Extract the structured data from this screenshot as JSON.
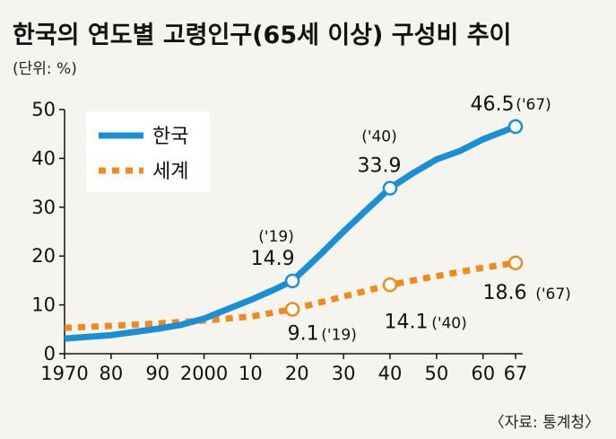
{
  "title": "한국의 연도별 고령인구(65세 이상) 구성비 추이",
  "unit": "(단위: %)",
  "source": "〈자료: 통계청〉",
  "colors": {
    "korea": "#1a8fd6",
    "world": "#f08a1c",
    "background": "#f6f4ef"
  },
  "chart_data": {
    "type": "line",
    "title": "한국의 연도별 고령인구(65세 이상) 구성비 추이",
    "ylim": [
      0,
      50
    ],
    "xlim": [
      1970,
      2067
    ],
    "yticks": [
      0,
      10,
      20,
      30,
      40,
      50
    ],
    "ytick_labels": [
      "0",
      "10",
      "20",
      "30",
      "40",
      "50"
    ],
    "xticks": [
      1970,
      1980,
      1990,
      2000,
      2010,
      2020,
      2030,
      2040,
      2050,
      2060,
      2067
    ],
    "xtick_labels": [
      "1970",
      "80",
      "90",
      "2000",
      "10",
      "20",
      "30",
      "40",
      "50",
      "60",
      "67"
    ],
    "grid": false,
    "legend_position": "top-left",
    "series": [
      {
        "name": "한국",
        "style": "solid",
        "x": [
          1970,
          1980,
          1990,
          1995,
          2000,
          2005,
          2010,
          2015,
          2019,
          2025,
          2030,
          2035,
          2040,
          2045,
          2050,
          2055,
          2060,
          2067
        ],
        "y": [
          3.1,
          3.8,
          5.1,
          5.9,
          7.2,
          9.1,
          11.0,
          13.1,
          14.9,
          20.3,
          25.0,
          29.5,
          33.9,
          37.0,
          39.8,
          41.5,
          43.9,
          46.5
        ]
      },
      {
        "name": "세계",
        "style": "dotted",
        "x": [
          1970,
          1980,
          1990,
          2000,
          2010,
          2019,
          2030,
          2040,
          2050,
          2060,
          2067
        ],
        "y": [
          5.3,
          5.7,
          6.2,
          6.8,
          7.6,
          9.1,
          11.7,
          14.1,
          15.9,
          17.6,
          18.6
        ]
      }
    ],
    "annotations": [
      {
        "series": "한국",
        "x": 2019,
        "y": 14.9,
        "value": "14.9",
        "year": "('19)"
      },
      {
        "series": "한국",
        "x": 2040,
        "y": 33.9,
        "value": "33.9",
        "year": "('40)"
      },
      {
        "series": "한국",
        "x": 2067,
        "y": 46.5,
        "value": "46.5",
        "year": "('67)"
      },
      {
        "series": "세계",
        "x": 2019,
        "y": 9.1,
        "value": "9.1",
        "year": "('19)"
      },
      {
        "series": "세계",
        "x": 2040,
        "y": 14.1,
        "value": "14.1",
        "year": "('40)"
      },
      {
        "series": "세계",
        "x": 2067,
        "y": 18.6,
        "value": "18.6",
        "year": "('67)"
      }
    ]
  }
}
